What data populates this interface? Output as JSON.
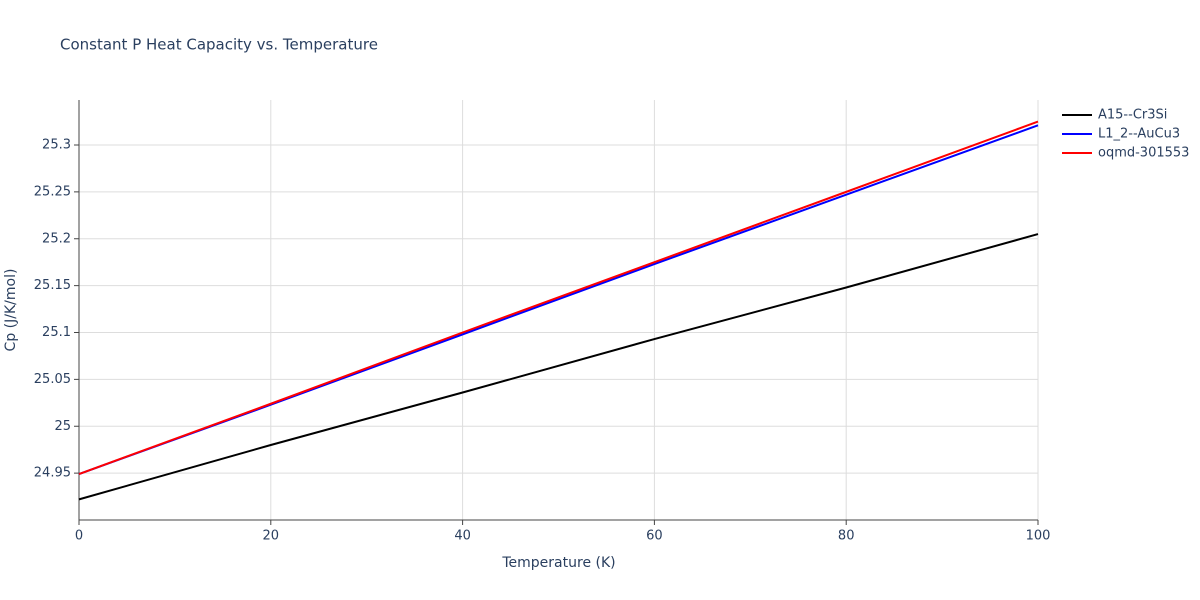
{
  "chart_data": {
    "type": "line",
    "title": "Constant P Heat Capacity vs. Temperature",
    "x_label": "Temperature (K)",
    "y_label": "Cp (J/K/mol)",
    "x": [
      0,
      20,
      40,
      60,
      80,
      100
    ],
    "series": [
      {
        "name": "A15--Cr3Si",
        "color": "#000000",
        "values": [
          24.922,
          24.98,
          25.036,
          25.093,
          25.148,
          25.205
        ]
      },
      {
        "name": "L1_2--AuCu3",
        "color": "#0000ff",
        "values": [
          24.949,
          25.023,
          25.098,
          25.173,
          25.247,
          25.321
        ]
      },
      {
        "name": "oqmd-301553",
        "color": "#ff0000",
        "values": [
          24.949,
          25.024,
          25.1,
          25.175,
          25.25,
          25.325
        ]
      }
    ],
    "xlim": [
      0,
      100
    ],
    "xticks": [
      0,
      20,
      40,
      60,
      80,
      100
    ],
    "ylim": [
      24.9,
      25.348
    ],
    "yticks": [
      24.95,
      25,
      25.05,
      25.1,
      25.15,
      25.2,
      25.25,
      25.3
    ],
    "grid": true,
    "legend": "right"
  }
}
